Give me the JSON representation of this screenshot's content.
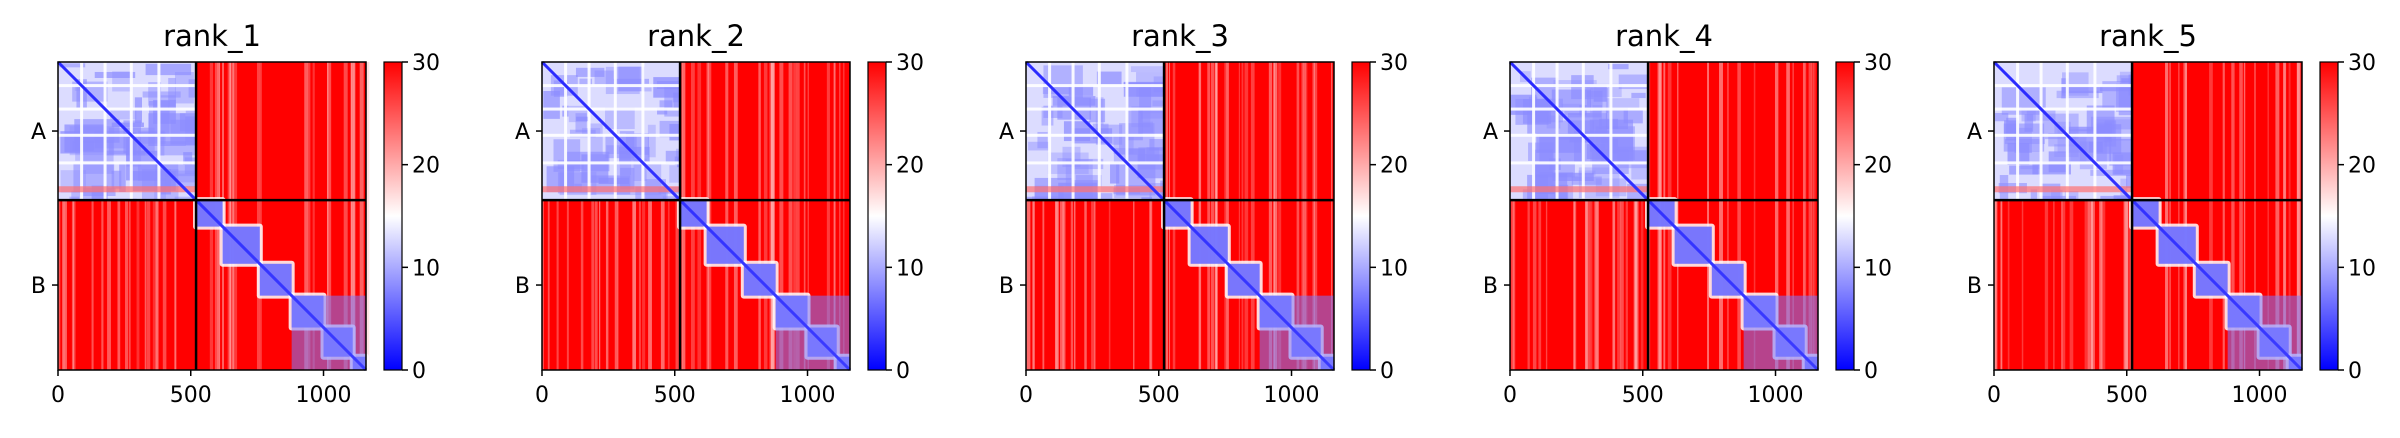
{
  "chart_data": {
    "type": "heatmap",
    "description_colorscale": "bwr",
    "colormap": [
      "#0000ff",
      "#ffffff",
      "#ff0000"
    ],
    "chain_labels": [
      "A",
      "B"
    ],
    "chain_boundary": 520,
    "residue_count": 1160,
    "x_ticks": [
      0,
      500,
      1000
    ],
    "colorbar_range": [
      0,
      30
    ],
    "colorbar_ticks": [
      0,
      10,
      20,
      30
    ],
    "panels": [
      {
        "title": "rank_1"
      },
      {
        "title": "rank_2"
      },
      {
        "title": "rank_3"
      },
      {
        "title": "rank_4"
      },
      {
        "title": "rank_5"
      }
    ]
  }
}
